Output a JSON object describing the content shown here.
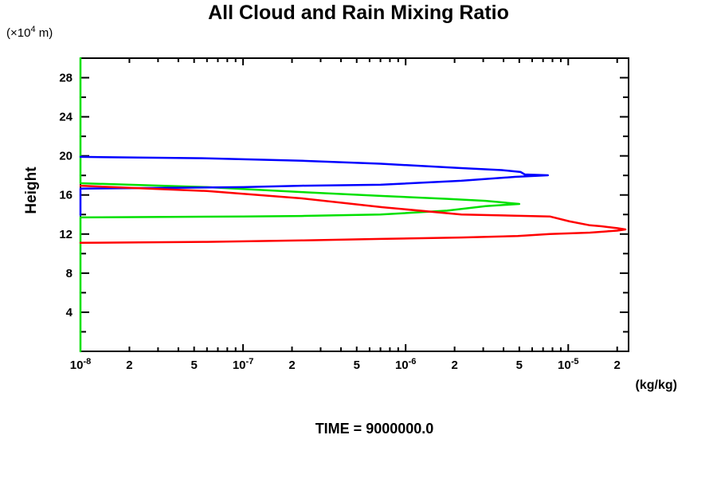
{
  "chart_data": {
    "type": "line",
    "title": "All Cloud and Rain Mixing Ratio",
    "footer": "TIME = 9000000.0",
    "x_axis": {
      "scale": "log",
      "min": 1e-08,
      "max": 2.35e-05,
      "unit_label": "(kg/kg)",
      "decade_ticks": [
        {
          "value": 1e-08,
          "base": "10",
          "exp": "-8"
        },
        {
          "value": 1e-07,
          "base": "10",
          "exp": "-7"
        },
        {
          "value": 1e-06,
          "base": "10",
          "exp": "-6"
        },
        {
          "value": 1e-05,
          "base": "10",
          "exp": "-5"
        }
      ],
      "labeled_minor_ticks": [
        {
          "value": 2e-08,
          "label": "2"
        },
        {
          "value": 5e-08,
          "label": "5"
        },
        {
          "value": 2e-07,
          "label": "2"
        },
        {
          "value": 5e-07,
          "label": "5"
        },
        {
          "value": 2e-06,
          "label": "2"
        },
        {
          "value": 5e-06,
          "label": "5"
        },
        {
          "value": 2e-05,
          "label": "2"
        }
      ],
      "minor_ticks": [
        3e-08,
        4e-08,
        6e-08,
        7e-08,
        8e-08,
        9e-08,
        3e-07,
        4e-07,
        6e-07,
        7e-07,
        8e-07,
        9e-07,
        3e-06,
        4e-06,
        6e-06,
        7e-06,
        8e-06,
        9e-06
      ]
    },
    "y_axis": {
      "scale": "linear",
      "min": 0,
      "max": 30,
      "label": "Height",
      "unit_prefix": "(×10",
      "unit_sup": "4",
      "unit_suffix": " m)",
      "major_ticks": [
        {
          "value": 4,
          "label": "4"
        },
        {
          "value": 8,
          "label": "8"
        },
        {
          "value": 12,
          "label": "12"
        },
        {
          "value": 16,
          "label": "16"
        },
        {
          "value": 20,
          "label": "20"
        },
        {
          "value": 24,
          "label": "24"
        },
        {
          "value": 28,
          "label": "28"
        }
      ],
      "minor_ticks": [
        2,
        6,
        10,
        14,
        18,
        22,
        26
      ]
    },
    "series": [
      {
        "name": "green-line",
        "color": "#00e000",
        "points": [
          [
            1e-08,
            0
          ],
          [
            1e-08,
            13.7
          ],
          [
            1e-07,
            13.8
          ],
          [
            2.3e-07,
            13.85
          ],
          [
            7e-07,
            14.0
          ],
          [
            1.8e-06,
            14.4
          ],
          [
            3.1e-06,
            14.85
          ],
          [
            5e-06,
            15.08
          ],
          [
            3.1e-06,
            15.4
          ],
          [
            1.8e-06,
            15.6
          ],
          [
            7.2e-07,
            15.9
          ],
          [
            2.3e-07,
            16.3
          ],
          [
            6e-08,
            16.8
          ],
          [
            1e-08,
            17.2
          ],
          [
            1e-08,
            30
          ]
        ]
      },
      {
        "name": "blue-line",
        "color": "#0000ff",
        "points": [
          [
            1e-08,
            13.95
          ],
          [
            1e-08,
            16.65
          ],
          [
            3e-08,
            16.72
          ],
          [
            1e-07,
            16.8
          ],
          [
            2.3e-07,
            16.95
          ],
          [
            7e-07,
            17.05
          ],
          [
            2.2e-06,
            17.45
          ],
          [
            4.7e-06,
            17.85
          ],
          [
            7.5e-06,
            18.02
          ],
          [
            5.4e-06,
            18.1
          ],
          [
            5.1e-06,
            18.35
          ],
          [
            3.9e-06,
            18.55
          ],
          [
            2.2e-06,
            18.75
          ],
          [
            7e-07,
            19.2
          ],
          [
            2.3e-07,
            19.5
          ],
          [
            6e-08,
            19.75
          ],
          [
            1e-08,
            19.9
          ]
        ]
      },
      {
        "name": "red-line",
        "color": "#ff0000",
        "points": [
          [
            1e-08,
            11.1
          ],
          [
            6e-08,
            11.2
          ],
          [
            2.3e-07,
            11.35
          ],
          [
            7e-07,
            11.5
          ],
          [
            2.2e-06,
            11.65
          ],
          [
            4.9e-06,
            11.8
          ],
          [
            7.7e-06,
            12.0
          ],
          [
            1.36e-05,
            12.15
          ],
          [
            2e-05,
            12.35
          ],
          [
            2.25e-05,
            12.47
          ],
          [
            2e-05,
            12.6
          ],
          [
            1.6e-05,
            12.8
          ],
          [
            1.36e-05,
            12.9
          ],
          [
            1.02e-05,
            13.3
          ],
          [
            7.7e-06,
            13.8
          ],
          [
            2.2e-06,
            14.0
          ],
          [
            7.2e-07,
            14.75
          ],
          [
            2.3e-07,
            15.65
          ],
          [
            6e-08,
            16.4
          ],
          [
            1e-08,
            16.95
          ]
        ]
      }
    ]
  }
}
